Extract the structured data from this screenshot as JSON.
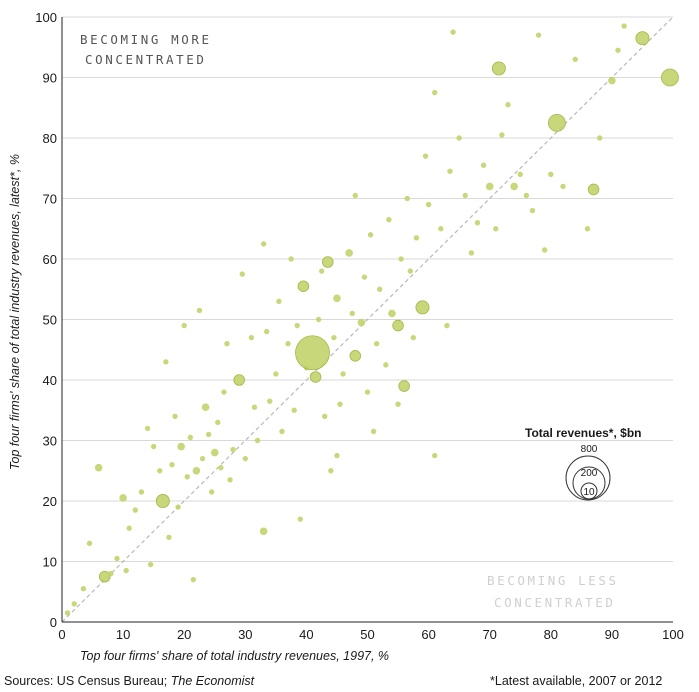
{
  "colors": {
    "point_fill": "#c2d36a",
    "point_stroke": "#a4b84a",
    "diagonal": "#b8b8b8",
    "grid": "#d9d9d9",
    "region_more": "#555555",
    "region_less": "#cfcfcf"
  },
  "chart_data": {
    "type": "scatter",
    "xlabel": "Top four firms' share of total industry revenues, 1997, %",
    "ylabel": "Top four firms' share of total industry revenues, latest*, %",
    "xlim": [
      0,
      100
    ],
    "ylim": [
      0,
      100
    ],
    "x_ticks": [
      "0",
      "10",
      "20",
      "30",
      "40",
      "50",
      "60",
      "70",
      "80",
      "90",
      "100"
    ],
    "y_ticks": [
      "0",
      "10",
      "20",
      "30",
      "40",
      "50",
      "60",
      "70",
      "80",
      "90",
      "100"
    ],
    "grid": "horizontal",
    "reference_line": "45-degree diagonal (y = x)",
    "annotations": {
      "upper_left": [
        "BECOMING MORE",
        "CONCENTRATED"
      ],
      "lower_right": [
        "BECOMING LESS",
        "CONCENTRATED"
      ]
    },
    "size_legend": {
      "title": "Total revenues*, $bn",
      "values": [
        "800",
        "200",
        "10"
      ],
      "placement": "right"
    },
    "points": [
      {
        "x": 0.9,
        "y": 1.5,
        "r": 10
      },
      {
        "x": 2,
        "y": 3,
        "r": 10
      },
      {
        "x": 3.5,
        "y": 5.5,
        "r": 10
      },
      {
        "x": 4.5,
        "y": 13,
        "r": 10
      },
      {
        "x": 6,
        "y": 25.5,
        "r": 20
      },
      {
        "x": 7,
        "y": 7.5,
        "r": 40
      },
      {
        "x": 8,
        "y": 8,
        "r": 10
      },
      {
        "x": 9,
        "y": 10.5,
        "r": 10
      },
      {
        "x": 10,
        "y": 20.5,
        "r": 20
      },
      {
        "x": 10.5,
        "y": 8.5,
        "r": 10
      },
      {
        "x": 11,
        "y": 15.5,
        "r": 10
      },
      {
        "x": 12,
        "y": 18.5,
        "r": 10
      },
      {
        "x": 13,
        "y": 21.5,
        "r": 10
      },
      {
        "x": 14,
        "y": 32,
        "r": 10
      },
      {
        "x": 14.5,
        "y": 9.5,
        "r": 10
      },
      {
        "x": 15,
        "y": 29,
        "r": 10
      },
      {
        "x": 16,
        "y": 25,
        "r": 10
      },
      {
        "x": 16.5,
        "y": 20,
        "r": 60
      },
      {
        "x": 17,
        "y": 43,
        "r": 10
      },
      {
        "x": 17.5,
        "y": 14,
        "r": 10
      },
      {
        "x": 18,
        "y": 26,
        "r": 10
      },
      {
        "x": 18.5,
        "y": 34,
        "r": 10
      },
      {
        "x": 19,
        "y": 19,
        "r": 10
      },
      {
        "x": 19.5,
        "y": 29,
        "r": 20
      },
      {
        "x": 20,
        "y": 49,
        "r": 10
      },
      {
        "x": 20.5,
        "y": 24,
        "r": 10
      },
      {
        "x": 21,
        "y": 30.5,
        "r": 10
      },
      {
        "x": 21.5,
        "y": 7,
        "r": 10
      },
      {
        "x": 22,
        "y": 25,
        "r": 20
      },
      {
        "x": 22.5,
        "y": 51.5,
        "r": 10
      },
      {
        "x": 23,
        "y": 27,
        "r": 10
      },
      {
        "x": 23.5,
        "y": 35.5,
        "r": 20
      },
      {
        "x": 24,
        "y": 31,
        "r": 10
      },
      {
        "x": 24.5,
        "y": 21.5,
        "r": 10
      },
      {
        "x": 25,
        "y": 28,
        "r": 20
      },
      {
        "x": 25.5,
        "y": 33,
        "r": 10
      },
      {
        "x": 26,
        "y": 25.5,
        "r": 10
      },
      {
        "x": 26.5,
        "y": 38,
        "r": 10
      },
      {
        "x": 27,
        "y": 46,
        "r": 10
      },
      {
        "x": 27.5,
        "y": 23.5,
        "r": 10
      },
      {
        "x": 28,
        "y": 28.5,
        "r": 10
      },
      {
        "x": 29,
        "y": 40,
        "r": 40
      },
      {
        "x": 29.5,
        "y": 57.5,
        "r": 10
      },
      {
        "x": 30,
        "y": 27,
        "r": 10
      },
      {
        "x": 31,
        "y": 47,
        "r": 10
      },
      {
        "x": 31.5,
        "y": 35.5,
        "r": 10
      },
      {
        "x": 32,
        "y": 30,
        "r": 10
      },
      {
        "x": 33,
        "y": 62.5,
        "r": 10
      },
      {
        "x": 33,
        "y": 15,
        "r": 20
      },
      {
        "x": 33.5,
        "y": 48,
        "r": 10
      },
      {
        "x": 34,
        "y": 36.5,
        "r": 10
      },
      {
        "x": 35,
        "y": 41,
        "r": 10
      },
      {
        "x": 35.5,
        "y": 53,
        "r": 10
      },
      {
        "x": 36,
        "y": 31.5,
        "r": 10
      },
      {
        "x": 37,
        "y": 46,
        "r": 10
      },
      {
        "x": 37.5,
        "y": 60,
        "r": 10
      },
      {
        "x": 38,
        "y": 35,
        "r": 10
      },
      {
        "x": 38.5,
        "y": 49,
        "r": 10
      },
      {
        "x": 39,
        "y": 17,
        "r": 10
      },
      {
        "x": 39.5,
        "y": 55.5,
        "r": 40
      },
      {
        "x": 40,
        "y": 42,
        "r": 10
      },
      {
        "x": 41,
        "y": 44.5,
        "r": 400
      },
      {
        "x": 41.5,
        "y": 40.5,
        "r": 40
      },
      {
        "x": 42,
        "y": 50,
        "r": 10
      },
      {
        "x": 42.5,
        "y": 58,
        "r": 10
      },
      {
        "x": 43,
        "y": 34,
        "r": 10
      },
      {
        "x": 43.5,
        "y": 59.5,
        "r": 40
      },
      {
        "x": 44,
        "y": 25,
        "r": 10
      },
      {
        "x": 44.5,
        "y": 47,
        "r": 10
      },
      {
        "x": 45,
        "y": 53.5,
        "r": 20
      },
      {
        "x": 45,
        "y": 27.5,
        "r": 10
      },
      {
        "x": 45.5,
        "y": 36,
        "r": 10
      },
      {
        "x": 46,
        "y": 41,
        "r": 10
      },
      {
        "x": 47,
        "y": 61,
        "r": 20
      },
      {
        "x": 47.5,
        "y": 51,
        "r": 10
      },
      {
        "x": 48,
        "y": 44,
        "r": 40
      },
      {
        "x": 48,
        "y": 70.5,
        "r": 10
      },
      {
        "x": 49,
        "y": 49.5,
        "r": 20
      },
      {
        "x": 49.5,
        "y": 57,
        "r": 10
      },
      {
        "x": 50,
        "y": 38,
        "r": 10
      },
      {
        "x": 50.5,
        "y": 64,
        "r": 10
      },
      {
        "x": 51,
        "y": 31.5,
        "r": 10
      },
      {
        "x": 51.5,
        "y": 46,
        "r": 10
      },
      {
        "x": 52,
        "y": 55,
        "r": 10
      },
      {
        "x": 53,
        "y": 42.5,
        "r": 10
      },
      {
        "x": 53.5,
        "y": 66.5,
        "r": 10
      },
      {
        "x": 54,
        "y": 51,
        "r": 20
      },
      {
        "x": 55,
        "y": 36,
        "r": 10
      },
      {
        "x": 55,
        "y": 49,
        "r": 40
      },
      {
        "x": 55.5,
        "y": 60,
        "r": 10
      },
      {
        "x": 56,
        "y": 39,
        "r": 40
      },
      {
        "x": 56.5,
        "y": 70,
        "r": 10
      },
      {
        "x": 57,
        "y": 58,
        "r": 10
      },
      {
        "x": 57.5,
        "y": 47,
        "r": 10
      },
      {
        "x": 58,
        "y": 63.5,
        "r": 10
      },
      {
        "x": 59,
        "y": 52,
        "r": 60
      },
      {
        "x": 59.5,
        "y": 77,
        "r": 10
      },
      {
        "x": 60,
        "y": 69,
        "r": 10
      },
      {
        "x": 61,
        "y": 27.5,
        "r": 10
      },
      {
        "x": 61,
        "y": 87.5,
        "r": 10
      },
      {
        "x": 62,
        "y": 65,
        "r": 10
      },
      {
        "x": 63,
        "y": 49,
        "r": 10
      },
      {
        "x": 63.5,
        "y": 74.5,
        "r": 10
      },
      {
        "x": 64,
        "y": 97.5,
        "r": 10
      },
      {
        "x": 65,
        "y": 80,
        "r": 10
      },
      {
        "x": 66,
        "y": 70.5,
        "r": 10
      },
      {
        "x": 67,
        "y": 61,
        "r": 10
      },
      {
        "x": 68,
        "y": 66,
        "r": 10
      },
      {
        "x": 69,
        "y": 75.5,
        "r": 10
      },
      {
        "x": 70,
        "y": 72,
        "r": 20
      },
      {
        "x": 71,
        "y": 65,
        "r": 10
      },
      {
        "x": 71.5,
        "y": 91.5,
        "r": 60
      },
      {
        "x": 72,
        "y": 80.5,
        "r": 10
      },
      {
        "x": 73,
        "y": 85.5,
        "r": 10
      },
      {
        "x": 74,
        "y": 72,
        "r": 20
      },
      {
        "x": 75,
        "y": 74,
        "r": 10
      },
      {
        "x": 76,
        "y": 70.5,
        "r": 10
      },
      {
        "x": 77,
        "y": 68,
        "r": 10
      },
      {
        "x": 78,
        "y": 97,
        "r": 10
      },
      {
        "x": 79,
        "y": 61.5,
        "r": 10
      },
      {
        "x": 80,
        "y": 74,
        "r": 10
      },
      {
        "x": 81,
        "y": 82.5,
        "r": 100
      },
      {
        "x": 82,
        "y": 72,
        "r": 10
      },
      {
        "x": 84,
        "y": 93,
        "r": 10
      },
      {
        "x": 86,
        "y": 65,
        "r": 10
      },
      {
        "x": 87,
        "y": 71.5,
        "r": 40
      },
      {
        "x": 88,
        "y": 80,
        "r": 10
      },
      {
        "x": 90,
        "y": 89.5,
        "r": 20
      },
      {
        "x": 91,
        "y": 94.5,
        "r": 10
      },
      {
        "x": 92,
        "y": 98.5,
        "r": 10
      },
      {
        "x": 95,
        "y": 96.5,
        "r": 60
      },
      {
        "x": 99.5,
        "y": 90,
        "r": 100
      }
    ]
  },
  "footer": {
    "sources_prefix": "Sources: US Census Bureau; ",
    "sources_italic": "The Economist",
    "note": "*Latest available, 2007 or 2012"
  }
}
